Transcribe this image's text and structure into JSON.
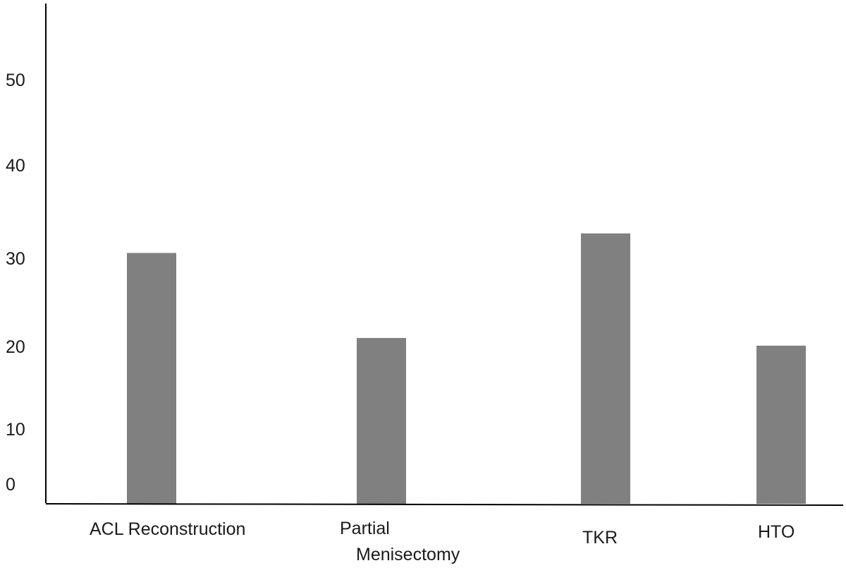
{
  "chart_data": {
    "type": "bar",
    "categories": [
      "ACL Reconstruction",
      "Partial Menisectomy",
      "TKR",
      "HTO"
    ],
    "category_label_lines": [
      [
        "ACL Reconstruction"
      ],
      [
        "Partial",
        "Menisectomy"
      ],
      [
        "TKR"
      ],
      [
        "HTO"
      ]
    ],
    "values": [
      29.5,
      19.5,
      31.8,
      18.6
    ],
    "y_ticks": [
      "0",
      "10",
      "20",
      "30",
      "40",
      "50"
    ],
    "ylim": [
      0,
      58
    ],
    "title": "",
    "xlabel": "",
    "ylabel": "",
    "grid": false,
    "legend": "none",
    "bar_color": "#808080",
    "axis_color": "#000000",
    "text_color": "#1a1a1a"
  }
}
